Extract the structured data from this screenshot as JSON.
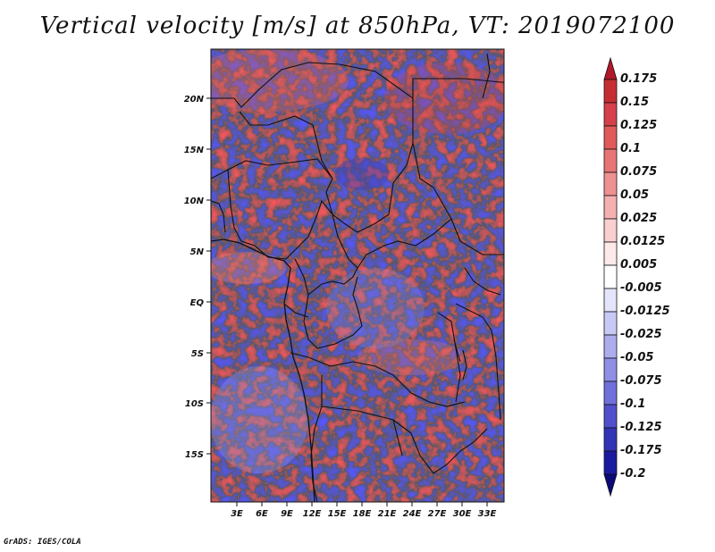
{
  "title": "Vertical velocity [m/s] at 850hPa, VT: 2019072100",
  "footer": "GrADS: IGES/COLA",
  "map": {
    "lat_ticks": [
      "20N",
      "15N",
      "10N",
      "5N",
      "EQ",
      "5S",
      "10S",
      "15S"
    ],
    "lon_ticks": [
      "3E",
      "6E",
      "9E",
      "12E",
      "15E",
      "18E",
      "21E",
      "24E",
      "27E",
      "30E",
      "33E"
    ]
  },
  "colorbar": {
    "labels": [
      "0.175",
      "0.15",
      "0.125",
      "0.1",
      "0.075",
      "0.05",
      "0.025",
      "0.0125",
      "0.005",
      "-0.005",
      "-0.0125",
      "-0.025",
      "-0.05",
      "-0.075",
      "-0.1",
      "-0.125",
      "-0.175",
      "-0.2"
    ],
    "colors": [
      "#b2182b",
      "#c62d33",
      "#d6404a",
      "#e05a5a",
      "#e87575",
      "#ef9191",
      "#f5b1b1",
      "#f9cfcf",
      "#fde9e9",
      "#ffffff",
      "#e4e4fb",
      "#c9c9f5",
      "#adadee",
      "#8f8fe5",
      "#7070db",
      "#5050cc",
      "#3333b8",
      "#1a1aa0",
      "#0a0a78"
    ]
  },
  "chart_data": {
    "type": "heatmap",
    "variable": "Vertical velocity",
    "units": "m/s",
    "level": "850hPa",
    "valid_time": "2019072100",
    "lon_range": [
      0,
      35
    ],
    "lat_range": [
      -19.5,
      24.5
    ],
    "contour_levels": [
      -0.2,
      -0.175,
      -0.125,
      -0.1,
      -0.075,
      -0.05,
      -0.025,
      -0.0125,
      -0.005,
      0.005,
      0.0125,
      0.025,
      0.05,
      0.075,
      0.1,
      0.125,
      0.15,
      0.175
    ]
  }
}
